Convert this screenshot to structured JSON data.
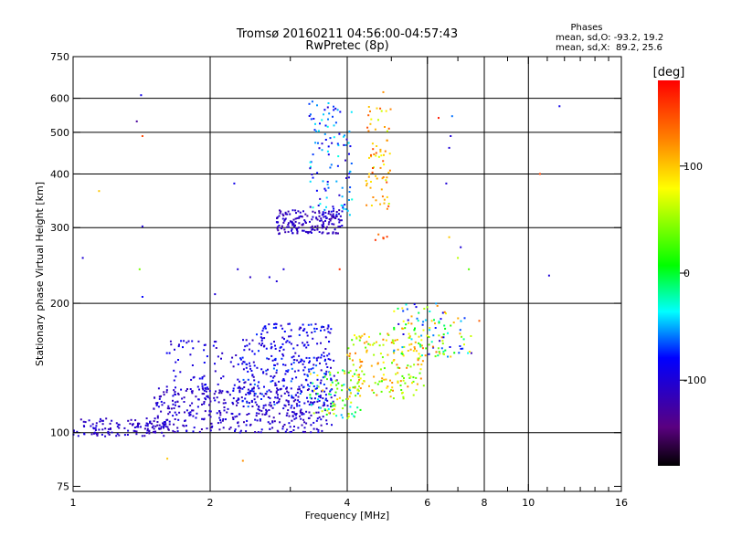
{
  "chart_data": {
    "type": "scatter",
    "title": "Tromsø 20160211 04:56:00-04:57:43",
    "subtitle": "RwPretec (8p)",
    "xlabel": "Frequency [MHz]",
    "ylabel": "Stationary phase Virtual Height [km]",
    "x_scale": "log",
    "y_scale": "log",
    "xlim": [
      1,
      16
    ],
    "ylim": [
      73,
      750
    ],
    "x_ticks": [
      1,
      2,
      4,
      6,
      8,
      10,
      16
    ],
    "x_minor_ticks": [
      3,
      5,
      7,
      9,
      11,
      12,
      13,
      14,
      15
    ],
    "y_ticks": [
      75,
      100,
      200,
      300,
      400,
      500,
      600,
      750
    ],
    "x_gridlines": [
      2,
      4,
      6,
      8,
      10
    ],
    "y_gridlines": [
      100,
      200,
      300,
      400,
      500,
      600
    ],
    "colorbar": {
      "label": "[deg]",
      "range": [
        -180,
        180
      ],
      "ticks": [
        100,
        0,
        -100
      ]
    },
    "annotation": {
      "heading": "Phases",
      "line1": "mean, sd,O: -93.2, 19.2",
      "line2": "mean, sd,X:  89.2, 25.6"
    },
    "clusters": [
      {
        "f": [
          1.0,
          1.6
        ],
        "h": [
          98,
          108
        ],
        "phase": [
          -120,
          -95
        ],
        "n": 120
      },
      {
        "f": [
          1.5,
          3.7
        ],
        "h": [
          100,
          128
        ],
        "phase": [
          -120,
          -90
        ],
        "n": 420
      },
      {
        "f": [
          2.3,
          3.8
        ],
        "h": [
          115,
          150
        ],
        "phase": [
          -115,
          -60
        ],
        "n": 170
      },
      {
        "f": [
          1.6,
          2.8
        ],
        "h": [
          125,
          165
        ],
        "phase": [
          -115,
          -80
        ],
        "n": 110
      },
      {
        "f": [
          2.5,
          3.7
        ],
        "h": [
          145,
          180
        ],
        "phase": [
          -110,
          -70
        ],
        "n": 110
      },
      {
        "f": [
          3.3,
          4.3
        ],
        "h": [
          108,
          140
        ],
        "phase": [
          -60,
          110
        ],
        "n": 90
      },
      {
        "f": [
          4.0,
          5.9
        ],
        "h": [
          120,
          170
        ],
        "phase": [
          20,
          130
        ],
        "n": 160
      },
      {
        "f": [
          5.0,
          6.6
        ],
        "h": [
          150,
          200
        ],
        "phase": [
          -100,
          140
        ],
        "n": 90
      },
      {
        "f": [
          6.3,
          7.5
        ],
        "h": [
          150,
          185
        ],
        "phase": [
          -120,
          130
        ],
        "n": 35
      },
      {
        "f": [
          2.8,
          3.9
        ],
        "h": [
          290,
          330
        ],
        "phase": [
          -125,
          -95
        ],
        "n": 180
      },
      {
        "f": [
          3.3,
          4.1
        ],
        "h": [
          320,
          600
        ],
        "phase": [
          -110,
          -30
        ],
        "n": 110
      },
      {
        "f": [
          4.4,
          5.0
        ],
        "h": [
          330,
          580
        ],
        "phase": [
          60,
          150
        ],
        "n": 70
      },
      {
        "f": [
          4.6,
          5.0
        ],
        "h": [
          270,
          290
        ],
        "phase": [
          130,
          160
        ],
        "n": 6
      }
    ],
    "scattered_points": [
      {
        "f": 1.05,
        "h": 255,
        "phase": -100
      },
      {
        "f": 1.14,
        "h": 365,
        "phase": 100
      },
      {
        "f": 1.41,
        "h": 610,
        "phase": -90
      },
      {
        "f": 1.38,
        "h": 530,
        "phase": -130
      },
      {
        "f": 1.42,
        "h": 490,
        "phase": 150
      },
      {
        "f": 1.42,
        "h": 302,
        "phase": -100
      },
      {
        "f": 1.4,
        "h": 240,
        "phase": 40
      },
      {
        "f": 1.42,
        "h": 207,
        "phase": -80
      },
      {
        "f": 1.61,
        "h": 87,
        "phase": 100
      },
      {
        "f": 2.36,
        "h": 86,
        "phase": 120
      },
      {
        "f": 2.05,
        "h": 210,
        "phase": -100
      },
      {
        "f": 2.26,
        "h": 380,
        "phase": -90
      },
      {
        "f": 2.3,
        "h": 240,
        "phase": -100
      },
      {
        "f": 2.45,
        "h": 230,
        "phase": -110
      },
      {
        "f": 2.7,
        "h": 230,
        "phase": -100
      },
      {
        "f": 2.8,
        "h": 225,
        "phase": -100
      },
      {
        "f": 2.9,
        "h": 240,
        "phase": -100
      },
      {
        "f": 3.85,
        "h": 240,
        "phase": 160
      },
      {
        "f": 4.8,
        "h": 620,
        "phase": 120
      },
      {
        "f": 6.35,
        "h": 540,
        "phase": 170
      },
      {
        "f": 6.8,
        "h": 545,
        "phase": -60
      },
      {
        "f": 6.75,
        "h": 490,
        "phase": -100
      },
      {
        "f": 6.7,
        "h": 460,
        "phase": -100
      },
      {
        "f": 6.6,
        "h": 380,
        "phase": -100
      },
      {
        "f": 6.7,
        "h": 285,
        "phase": 100
      },
      {
        "f": 7.0,
        "h": 255,
        "phase": 60
      },
      {
        "f": 7.4,
        "h": 240,
        "phase": 30
      },
      {
        "f": 7.1,
        "h": 270,
        "phase": -100
      },
      {
        "f": 10.6,
        "h": 400,
        "phase": 150
      },
      {
        "f": 11.1,
        "h": 232,
        "phase": -100
      },
      {
        "f": 11.7,
        "h": 575,
        "phase": -90
      },
      {
        "f": 7.8,
        "h": 182,
        "phase": 140
      },
      {
        "f": 4.8,
        "h": 160,
        "phase": 60
      }
    ]
  }
}
